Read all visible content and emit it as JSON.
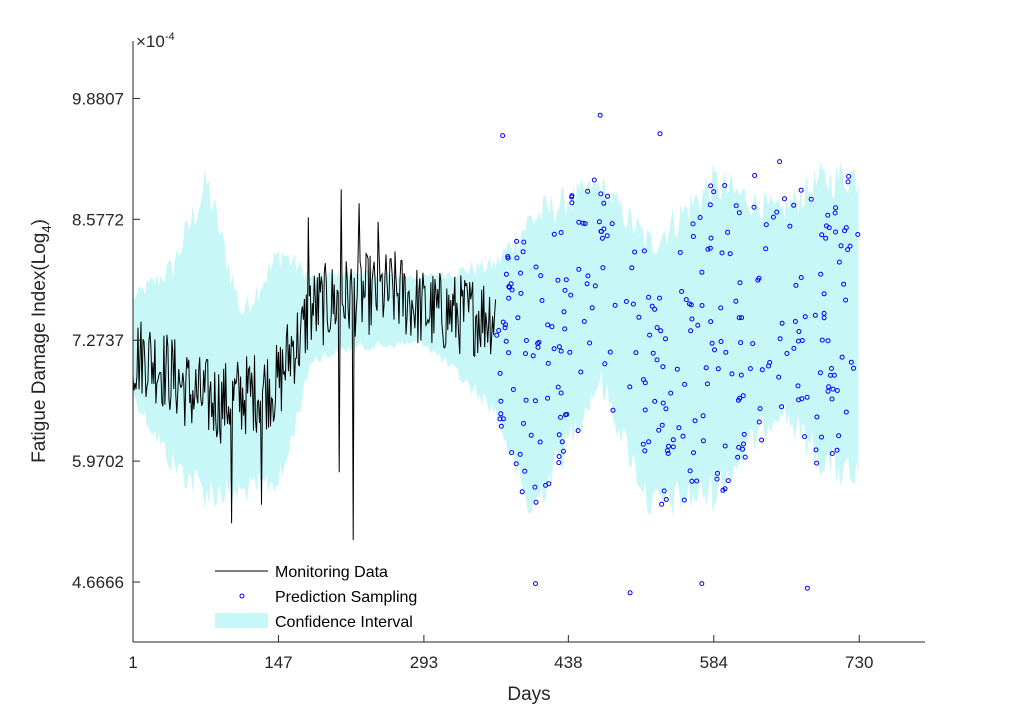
{
  "chart_data": {
    "type": "line",
    "xlabel": "Days",
    "ylabel": "Fatigue Damage Index(Log",
    "ylabel_subscript": "4",
    "ylabel_suffix": ")",
    "exponent_label": "×10",
    "exponent_power": "-4",
    "x_ticks": [
      "1",
      "147",
      "293",
      "438",
      "584",
      "730"
    ],
    "y_ticks": [
      "4.6666",
      "5.9702",
      "7.2737",
      "8.5772",
      "9.8807"
    ],
    "xlim": [
      1,
      796
    ],
    "ylim": [
      4.02,
      10.5
    ],
    "grid": false,
    "legend_position": "bottom-left",
    "legend": [
      "Monitoring Data",
      "Prediction Sampling",
      "Confidence Interval"
    ],
    "colors": {
      "monitoring": "#000000",
      "prediction": "#0000ff",
      "confidence": "#c8f7f8"
    },
    "monitoring": {
      "x_range": [
        1,
        365
      ],
      "base_segments": [
        [
          1,
          7.1
        ],
        [
          15,
          7.1
        ],
        [
          40,
          6.9
        ],
        [
          60,
          6.7
        ],
        [
          90,
          6.6
        ],
        [
          147,
          6.8
        ],
        [
          160,
          7.2
        ],
        [
          170,
          7.3
        ],
        [
          178,
          7.6
        ],
        [
          220,
          7.75
        ],
        [
          265,
          7.8
        ],
        [
          293,
          7.6
        ],
        [
          330,
          7.55
        ],
        [
          365,
          7.55
        ]
      ],
      "amplitude": 0.45,
      "spikes": [
        [
          177,
          8.6
        ],
        [
          210,
          8.9
        ],
        [
          222,
          5.12
        ],
        [
          228,
          8.75
        ],
        [
          247,
          8.55
        ],
        [
          208,
          5.85
        ],
        [
          100,
          5.3
        ],
        [
          130,
          5.5
        ]
      ]
    },
    "confidence_band": {
      "x_range": [
        1,
        730
      ],
      "center_points": [
        [
          1,
          7.2
        ],
        [
          40,
          7.0
        ],
        [
          75,
          7.3
        ],
        [
          110,
          6.6
        ],
        [
          150,
          7.0
        ],
        [
          180,
          7.5
        ],
        [
          220,
          7.6
        ],
        [
          293,
          7.6
        ],
        [
          365,
          7.3
        ],
        [
          400,
          7.0
        ],
        [
          470,
          7.9
        ],
        [
          520,
          6.9
        ],
        [
          584,
          7.3
        ],
        [
          650,
          7.6
        ],
        [
          730,
          7.4
        ]
      ],
      "half_width_points": [
        [
          1,
          0.6
        ],
        [
          40,
          1.2
        ],
        [
          75,
          1.9
        ],
        [
          110,
          1.1
        ],
        [
          150,
          1.4
        ],
        [
          180,
          0.5
        ],
        [
          293,
          0.4
        ],
        [
          365,
          0.9
        ],
        [
          400,
          1.8
        ],
        [
          470,
          1.2
        ],
        [
          520,
          1.6
        ],
        [
          584,
          1.9
        ],
        [
          650,
          1.2
        ],
        [
          690,
          1.7
        ],
        [
          730,
          1.9
        ]
      ]
    },
    "prediction_sampling": {
      "x_range": [
        365,
        730
      ],
      "count": 300,
      "outliers": [
        [
          470,
          9.7
        ],
        [
          372,
          9.48
        ],
        [
          530,
          9.5
        ],
        [
          500,
          4.55
        ],
        [
          405,
          4.65
        ],
        [
          572,
          4.65
        ],
        [
          678,
          4.6
        ],
        [
          650,
          9.2
        ],
        [
          625,
          9.05
        ],
        [
          655,
          8.8
        ]
      ]
    }
  }
}
